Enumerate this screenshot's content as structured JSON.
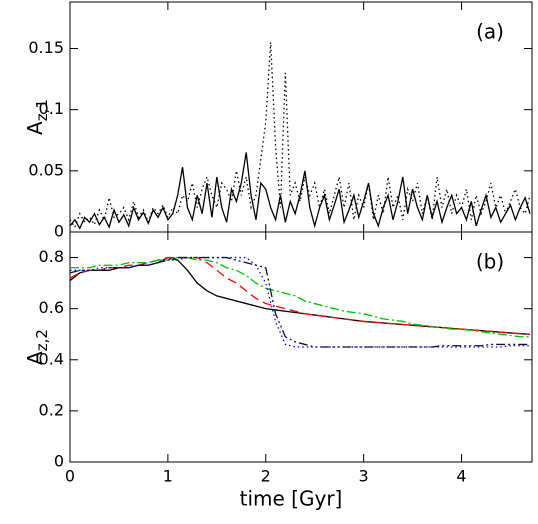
{
  "chart_data": [
    {
      "type": "line",
      "annotation": "(a)",
      "ylabel": "A",
      "ylabel_sub": "z,1",
      "xlim": [
        0,
        4.72
      ],
      "xticks": [
        0,
        1,
        2,
        3,
        4
      ],
      "show_xtick_labels": false,
      "ylim": [
        0,
        0.188
      ],
      "yticks": [
        0,
        0.05,
        0.1,
        0.15
      ],
      "x": [
        0,
        0.05,
        0.1,
        0.15,
        0.2,
        0.25,
        0.3,
        0.35,
        0.4,
        0.45,
        0.5,
        0.55,
        0.6,
        0.65,
        0.7,
        0.75,
        0.8,
        0.85,
        0.9,
        0.95,
        1,
        1.05,
        1.1,
        1.15,
        1.2,
        1.25,
        1.3,
        1.35,
        1.4,
        1.45,
        1.5,
        1.55,
        1.6,
        1.65,
        1.7,
        1.75,
        1.8,
        1.85,
        1.9,
        1.95,
        2,
        2.05,
        2.1,
        2.15,
        2.2,
        2.25,
        2.3,
        2.35,
        2.4,
        2.45,
        2.5,
        2.55,
        2.6,
        2.65,
        2.7,
        2.75,
        2.8,
        2.85,
        2.9,
        2.95,
        3,
        3.05,
        3.1,
        3.15,
        3.2,
        3.25,
        3.3,
        3.35,
        3.4,
        3.45,
        3.5,
        3.55,
        3.6,
        3.65,
        3.7,
        3.75,
        3.8,
        3.85,
        3.9,
        3.95,
        4,
        4.05,
        4.1,
        4.15,
        4.2,
        4.25,
        4.3,
        4.35,
        4.4,
        4.45,
        4.5,
        4.55,
        4.6,
        4.65,
        4.7
      ],
      "series": [
        {
          "color": "#000000",
          "style": "solid",
          "values": [
            0.005,
            0.01,
            0.003,
            0.012,
            0.008,
            0.015,
            0.006,
            0.012,
            0.004,
            0.018,
            0.008,
            0.014,
            0.005,
            0.02,
            0.01,
            0.016,
            0.007,
            0.018,
            0.012,
            0.02,
            0.01,
            0.015,
            0.03,
            0.053,
            0.02,
            0.01,
            0.03,
            0.015,
            0.04,
            0.012,
            0.045,
            0.02,
            0.008,
            0.035,
            0.025,
            0.04,
            0.065,
            0.03,
            0.01,
            0.04,
            0.035,
            0.02,
            0.01,
            0.03,
            0.008,
            0.025,
            0.015,
            0.03,
            0.05,
            0.02,
            0.005,
            0.02,
            0.03,
            0.01,
            0.022,
            0.035,
            0.008,
            0.018,
            0.03,
            0.012,
            0.025,
            0.04,
            0.015,
            0.005,
            0.02,
            0.03,
            0.01,
            0.025,
            0.045,
            0.015,
            0.035,
            0.02,
            0.01,
            0.03,
            0.012,
            0.025,
            0.008,
            0.02,
            0.03,
            0.015,
            0.02,
            0.01,
            0.025,
            0.005,
            0.018,
            0.03,
            0.012,
            0.02,
            0.008,
            0.015,
            0.022,
            0.01,
            0.02,
            0.028,
            0.015
          ]
        },
        {
          "color": "#000000",
          "style": "dotted",
          "values": [
            0.01,
            0.004,
            0.015,
            0.008,
            0.012,
            0.006,
            0.018,
            0.01,
            0.028,
            0.012,
            0.015,
            0.02,
            0.01,
            0.025,
            0.012,
            0.018,
            0.008,
            0.02,
            0.015,
            0.022,
            0.012,
            0.02,
            0.015,
            0.03,
            0.025,
            0.04,
            0.02,
            0.035,
            0.045,
            0.03,
            0.02,
            0.04,
            0.035,
            0.025,
            0.05,
            0.03,
            0.045,
            0.02,
            0.03,
            0.06,
            0.09,
            0.155,
            0.07,
            0.02,
            0.13,
            0.03,
            0.04,
            0.025,
            0.045,
            0.03,
            0.04,
            0.02,
            0.035,
            0.015,
            0.03,
            0.045,
            0.02,
            0.04,
            0.01,
            0.03,
            0.02,
            0.04,
            0.01,
            0.03,
            0.015,
            0.045,
            0.02,
            0.03,
            0.01,
            0.035,
            0.025,
            0.04,
            0.015,
            0.03,
            0.01,
            0.045,
            0.02,
            0.035,
            0.015,
            0.03,
            0.02,
            0.035,
            0.01,
            0.03,
            0.015,
            0.025,
            0.04,
            0.02,
            0.03,
            0.015,
            0.025,
            0.035,
            0.02,
            0.015,
            0.03
          ]
        }
      ]
    },
    {
      "type": "line",
      "annotation": "(b)",
      "ylabel": "A",
      "ylabel_sub": "z,2",
      "xlabel": "time [Gyr]",
      "xlim": [
        0,
        4.72
      ],
      "xticks": [
        0,
        1,
        2,
        3,
        4
      ],
      "show_xtick_labels": true,
      "ylim": [
        0,
        0.9
      ],
      "yticks": [
        0,
        0.2,
        0.4,
        0.6,
        0.8
      ],
      "x": [
        0,
        0.1,
        0.2,
        0.3,
        0.4,
        0.5,
        0.6,
        0.7,
        0.8,
        0.9,
        1,
        1.1,
        1.2,
        1.3,
        1.4,
        1.5,
        1.6,
        1.7,
        1.8,
        1.9,
        2,
        2.1,
        2.2,
        2.3,
        2.4,
        2.5,
        2.6,
        2.7,
        2.8,
        2.9,
        3,
        3.1,
        3.2,
        3.3,
        3.4,
        3.5,
        3.6,
        3.7,
        3.8,
        3.9,
        4,
        4.1,
        4.2,
        4.3,
        4.4,
        4.5,
        4.6,
        4.7
      ],
      "series": [
        {
          "color": "#000000",
          "style": "solid",
          "values": [
            0.71,
            0.74,
            0.75,
            0.75,
            0.75,
            0.76,
            0.76,
            0.77,
            0.77,
            0.78,
            0.8,
            0.79,
            0.75,
            0.7,
            0.67,
            0.65,
            0.64,
            0.63,
            0.62,
            0.61,
            0.6,
            0.595,
            0.59,
            0.585,
            0.58,
            0.575,
            0.57,
            0.565,
            0.56,
            0.555,
            0.55,
            0.547,
            0.544,
            0.541,
            0.538,
            0.535,
            0.532,
            0.529,
            0.526,
            0.523,
            0.52,
            0.517,
            0.514,
            0.511,
            0.508,
            0.505,
            0.502,
            0.5
          ]
        },
        {
          "color": "#ff0000",
          "style": "dashed",
          "values": [
            0.72,
            0.74,
            0.75,
            0.75,
            0.76,
            0.76,
            0.77,
            0.77,
            0.78,
            0.79,
            0.8,
            0.8,
            0.8,
            0.8,
            0.78,
            0.75,
            0.72,
            0.7,
            0.67,
            0.64,
            0.62,
            0.61,
            0.6,
            0.59,
            0.58,
            0.575,
            0.57,
            0.565,
            0.56,
            0.555,
            0.55,
            0.547,
            0.544,
            0.541,
            0.538,
            0.535,
            0.532,
            0.529,
            0.526,
            0.523,
            0.52,
            0.517,
            0.514,
            0.511,
            0.508,
            0.505,
            0.502,
            0.5
          ]
        },
        {
          "color": "#00c000",
          "style": "dashdot",
          "values": [
            0.76,
            0.76,
            0.76,
            0.77,
            0.77,
            0.77,
            0.78,
            0.78,
            0.78,
            0.79,
            0.79,
            0.8,
            0.8,
            0.79,
            0.79,
            0.78,
            0.76,
            0.75,
            0.73,
            0.7,
            0.68,
            0.67,
            0.66,
            0.65,
            0.63,
            0.62,
            0.61,
            0.6,
            0.59,
            0.585,
            0.58,
            0.57,
            0.56,
            0.555,
            0.55,
            0.54,
            0.535,
            0.53,
            0.525,
            0.52,
            0.52,
            0.515,
            0.51,
            0.505,
            0.5,
            0.495,
            0.49,
            0.49
          ]
        },
        {
          "color": "#0000ff",
          "style": "dotted",
          "values": [
            0.75,
            0.75,
            0.75,
            0.76,
            0.76,
            0.76,
            0.76,
            0.77,
            0.77,
            0.78,
            0.79,
            0.79,
            0.8,
            0.8,
            0.8,
            0.8,
            0.8,
            0.8,
            0.8,
            0.77,
            0.7,
            0.55,
            0.46,
            0.45,
            0.45,
            0.45,
            0.45,
            0.45,
            0.45,
            0.45,
            0.45,
            0.45,
            0.45,
            0.45,
            0.45,
            0.45,
            0.45,
            0.45,
            0.45,
            0.45,
            0.45,
            0.45,
            0.45,
            0.45,
            0.45,
            0.455,
            0.455,
            0.455
          ]
        },
        {
          "color": "#101030",
          "style": "dashdotdot",
          "values": [
            0.74,
            0.75,
            0.75,
            0.75,
            0.76,
            0.76,
            0.76,
            0.77,
            0.77,
            0.78,
            0.79,
            0.8,
            0.8,
            0.8,
            0.8,
            0.8,
            0.8,
            0.79,
            0.78,
            0.77,
            0.76,
            0.58,
            0.49,
            0.47,
            0.46,
            0.45,
            0.45,
            0.45,
            0.45,
            0.45,
            0.45,
            0.45,
            0.45,
            0.45,
            0.45,
            0.45,
            0.45,
            0.45,
            0.455,
            0.455,
            0.455,
            0.455,
            0.455,
            0.46,
            0.46,
            0.46,
            0.46,
            0.46
          ]
        }
      ]
    }
  ]
}
